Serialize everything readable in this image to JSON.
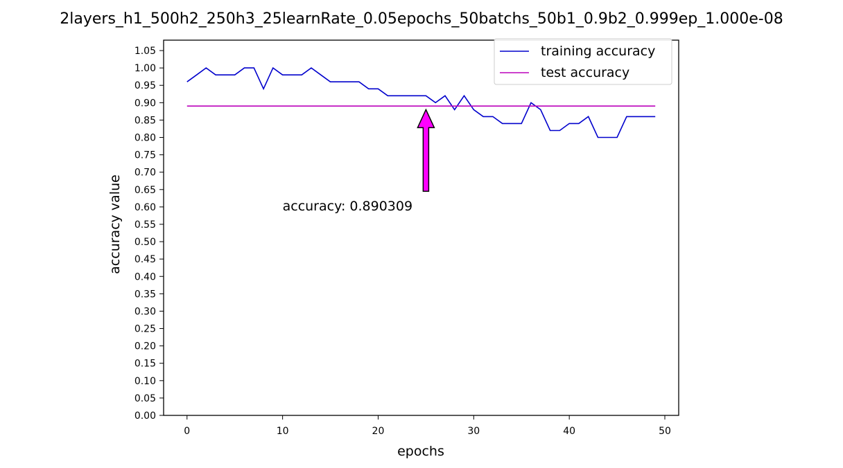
{
  "chart_data": {
    "type": "line",
    "title": "2layers_h1_500h2_250h3_25learnRate_0.05epochs_50batchs_50b1_0.9b2_0.999ep_1.000e-08",
    "xlabel": "epochs",
    "ylabel": "accuracy value",
    "xlim": [
      -2.45,
      51.45
    ],
    "ylim": [
      0,
      1.08
    ],
    "xticks": [
      0,
      10,
      20,
      30,
      40,
      50
    ],
    "xtick_labels": [
      "0",
      "10",
      "20",
      "30",
      "40",
      "50"
    ],
    "yticks": [
      0.0,
      0.05,
      0.1,
      0.15,
      0.2,
      0.25,
      0.3,
      0.35,
      0.4,
      0.45,
      0.5,
      0.55,
      0.6,
      0.65,
      0.7,
      0.75,
      0.8,
      0.85,
      0.9,
      0.95,
      1.0,
      1.05
    ],
    "ytick_labels": [
      "0.00",
      "0.05",
      "0.10",
      "0.15",
      "0.20",
      "0.25",
      "0.30",
      "0.35",
      "0.40",
      "0.45",
      "0.50",
      "0.55",
      "0.60",
      "0.65",
      "0.70",
      "0.75",
      "0.80",
      "0.85",
      "0.90",
      "0.95",
      "1.00",
      "1.05"
    ],
    "grid": false,
    "legend_position": "top-right",
    "x": [
      0,
      1,
      2,
      3,
      4,
      5,
      6,
      7,
      8,
      9,
      10,
      11,
      12,
      13,
      14,
      15,
      16,
      17,
      18,
      19,
      20,
      21,
      22,
      23,
      24,
      25,
      26,
      27,
      28,
      29,
      30,
      31,
      32,
      33,
      34,
      35,
      36,
      37,
      38,
      39,
      40,
      41,
      42,
      43,
      44,
      45,
      46,
      47,
      48,
      49
    ],
    "series": [
      {
        "name": "training accuracy",
        "color": "#0000cc",
        "values": [
          0.96,
          0.98,
          1.0,
          0.98,
          0.98,
          0.98,
          1.0,
          1.0,
          0.94,
          1.0,
          0.98,
          0.98,
          0.98,
          1.0,
          0.98,
          0.96,
          0.96,
          0.96,
          0.96,
          0.94,
          0.94,
          0.92,
          0.92,
          0.92,
          0.92,
          0.92,
          0.9,
          0.92,
          0.88,
          0.92,
          0.88,
          0.86,
          0.86,
          0.84,
          0.84,
          0.84,
          0.9,
          0.88,
          0.82,
          0.82,
          0.84,
          0.84,
          0.86,
          0.8,
          0.8,
          0.8,
          0.86,
          0.86,
          0.86,
          0.86
        ]
      },
      {
        "name": "test accuracy",
        "color": "#bb00bb",
        "values": [
          0.890309,
          0.890309,
          0.890309,
          0.890309,
          0.890309,
          0.890309,
          0.890309,
          0.890309,
          0.890309,
          0.890309,
          0.890309,
          0.890309,
          0.890309,
          0.890309,
          0.890309,
          0.890309,
          0.890309,
          0.890309,
          0.890309,
          0.890309,
          0.890309,
          0.890309,
          0.890309,
          0.890309,
          0.890309,
          0.890309,
          0.890309,
          0.890309,
          0.890309,
          0.890309,
          0.890309,
          0.890309,
          0.890309,
          0.890309,
          0.890309,
          0.890309,
          0.890309,
          0.890309,
          0.890309,
          0.890309,
          0.890309,
          0.890309,
          0.890309,
          0.890309,
          0.890309,
          0.890309,
          0.890309,
          0.890309,
          0.890309,
          0.890309
        ]
      }
    ],
    "annotation": {
      "text": "accuracy: 0.890309",
      "arrow_color": "#ff00ff",
      "arrow_head_x": 25,
      "arrow_head_y": 0.88,
      "arrow_tail_x": 25,
      "arrow_tail_y": 0.645,
      "text_x": 10,
      "text_y": 0.59
    }
  }
}
